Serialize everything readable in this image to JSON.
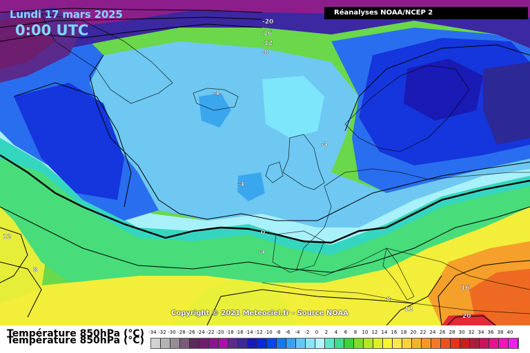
{
  "header": {
    "date": "Lundi 17 mars 2025",
    "time": "0:00 UTC",
    "source": "Réanalyses NOAA/NCEP 2"
  },
  "copyright": "Copyright © 2021 Meteociel.fr - Source NOAA",
  "legend": {
    "title": "Température 850hPa (°C)",
    "labels": [
      "-34",
      "-32",
      "-30",
      "-28",
      "-26",
      "-24",
      "-22",
      "-20",
      "-18",
      "-16",
      "-14",
      "-12",
      "-10",
      "-8",
      "-6",
      "-4",
      "-2",
      "0",
      "2",
      "4",
      "6",
      "8",
      "10",
      "12",
      "14",
      "16",
      "18",
      "20",
      "22",
      "24",
      "26",
      "28",
      "30",
      "32",
      "34",
      "36",
      "38",
      "40"
    ],
    "colors": [
      "#d2d2d2",
      "#b4b4b4",
      "#968c96",
      "#7a5a7a",
      "#5a2a5a",
      "#6e1e6e",
      "#8c148c",
      "#aa10aa",
      "#5a2a8c",
      "#3c2896",
      "#1a1ab4",
      "#0a28dc",
      "#0046f0",
      "#1478f0",
      "#3ca0f0",
      "#64c8f5",
      "#8ce6fa",
      "#b4f5fa",
      "#64e6c8",
      "#3cdc8c",
      "#3cd23c",
      "#82dc28",
      "#b4e628",
      "#dcf028",
      "#f5f532",
      "#fae650",
      "#fad23c",
      "#f5b428",
      "#f59628",
      "#f57828",
      "#f0501e",
      "#e6321e",
      "#c81e1e",
      "#aa1e3c",
      "#c8145a",
      "#e6148c",
      "#f014be",
      "#f01ef0"
    ]
  },
  "contour_labels": [
    "-20",
    "-16",
    "-12",
    "-8",
    "-4",
    "-4",
    "-4",
    "0",
    "-4",
    "12",
    "8",
    "16",
    "8",
    "12",
    "20"
  ]
}
